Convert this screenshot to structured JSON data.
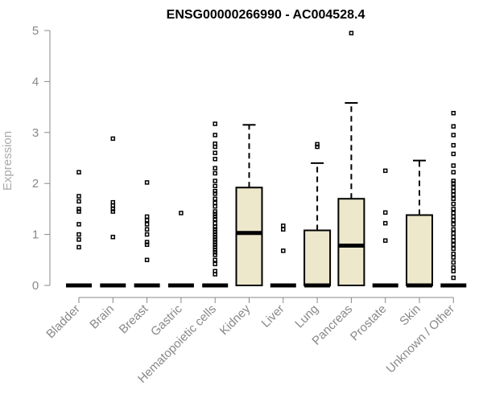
{
  "chart_data": {
    "type": "box",
    "title": "ENSG00000266990 - AC004528.4",
    "xlabel": "",
    "ylabel": "Expression",
    "ylim": [
      0,
      5
    ],
    "yticks": [
      0,
      1,
      2,
      3,
      4,
      5
    ],
    "categories": [
      "Bladder",
      "Brain",
      "Breast",
      "Gastric",
      "Hematopoietic cells",
      "Kidney",
      "Liver",
      "Lung",
      "Pancreas",
      "Prostate",
      "Skin",
      "Unknown / Other"
    ],
    "boxes": [
      {
        "category": "Bladder",
        "min": 0,
        "q1": 0,
        "median": 0,
        "q3": 0,
        "max": 0,
        "outliers": [
          2.22,
          1.75,
          1.65,
          1.5,
          1.45,
          1.2,
          1.0,
          0.9,
          0.75
        ]
      },
      {
        "category": "Brain",
        "min": 0,
        "q1": 0,
        "median": 0,
        "q3": 0,
        "max": 0,
        "outliers": [
          2.88,
          1.63,
          1.57,
          1.5,
          1.45,
          0.95
        ]
      },
      {
        "category": "Breast",
        "min": 0,
        "q1": 0,
        "median": 0,
        "q3": 0,
        "max": 0,
        "outliers": [
          2.02,
          1.35,
          1.28,
          1.2,
          1.1,
          1.0,
          0.85,
          0.8,
          0.5
        ]
      },
      {
        "category": "Gastric",
        "min": 0,
        "q1": 0,
        "median": 0,
        "q3": 0,
        "max": 0,
        "outliers": [
          1.42
        ]
      },
      {
        "category": "Hematopoietic cells",
        "min": 0,
        "q1": 0,
        "median": 0,
        "q3": 0,
        "max": 0,
        "outliers": [
          3.17,
          2.95,
          2.78,
          2.72,
          2.6,
          2.48,
          2.3,
          2.2,
          2.05,
          1.95,
          1.85,
          1.8,
          1.7,
          1.62,
          1.55,
          1.45,
          1.4,
          1.35,
          1.3,
          1.22,
          1.15,
          1.1,
          1.05,
          1.0,
          0.95,
          0.9,
          0.85,
          0.8,
          0.75,
          0.7,
          0.65,
          0.6,
          0.5,
          0.42,
          0.28,
          0.22
        ]
      },
      {
        "category": "Kidney",
        "min": 0,
        "q1": 0,
        "median": 1.03,
        "q3": 1.92,
        "max": 3.15,
        "outliers": []
      },
      {
        "category": "Liver",
        "min": 0,
        "q1": 0,
        "median": 0,
        "q3": 0,
        "max": 0,
        "outliers": [
          1.17,
          1.1,
          0.68
        ]
      },
      {
        "category": "Lung",
        "min": 0,
        "q1": 0,
        "median": 0,
        "q3": 1.08,
        "max": 2.4,
        "outliers": [
          2.77,
          2.72
        ]
      },
      {
        "category": "Pancreas",
        "min": 0,
        "q1": 0,
        "median": 0.78,
        "q3": 1.7,
        "max": 3.58,
        "outliers": [
          4.95
        ]
      },
      {
        "category": "Prostate",
        "min": 0,
        "q1": 0,
        "median": 0,
        "q3": 0,
        "max": 0,
        "outliers": [
          2.25,
          1.43,
          1.22,
          0.88
        ]
      },
      {
        "category": "Skin",
        "min": 0,
        "q1": 0,
        "median": 0,
        "q3": 1.38,
        "max": 2.45,
        "outliers": []
      },
      {
        "category": "Unknown / Other",
        "min": 0,
        "q1": 0,
        "median": 0,
        "q3": 0,
        "max": 0,
        "outliers": [
          3.38,
          3.12,
          2.95,
          2.75,
          2.58,
          2.35,
          2.22,
          2.05,
          2.0,
          1.92,
          1.85,
          1.78,
          1.7,
          1.6,
          1.5,
          1.42,
          1.35,
          1.28,
          1.2,
          1.1,
          1.02,
          0.95,
          0.88,
          0.8,
          0.72,
          0.62,
          0.55,
          0.45,
          0.35,
          0.28,
          0.15
        ]
      }
    ],
    "colors": {
      "box_fill": "#ede7cc",
      "box_stroke": "#000000",
      "axis": "#888888",
      "ylabel": "#aaaaaa",
      "title": "#000000"
    },
    "grid": false,
    "legend": "none"
  }
}
